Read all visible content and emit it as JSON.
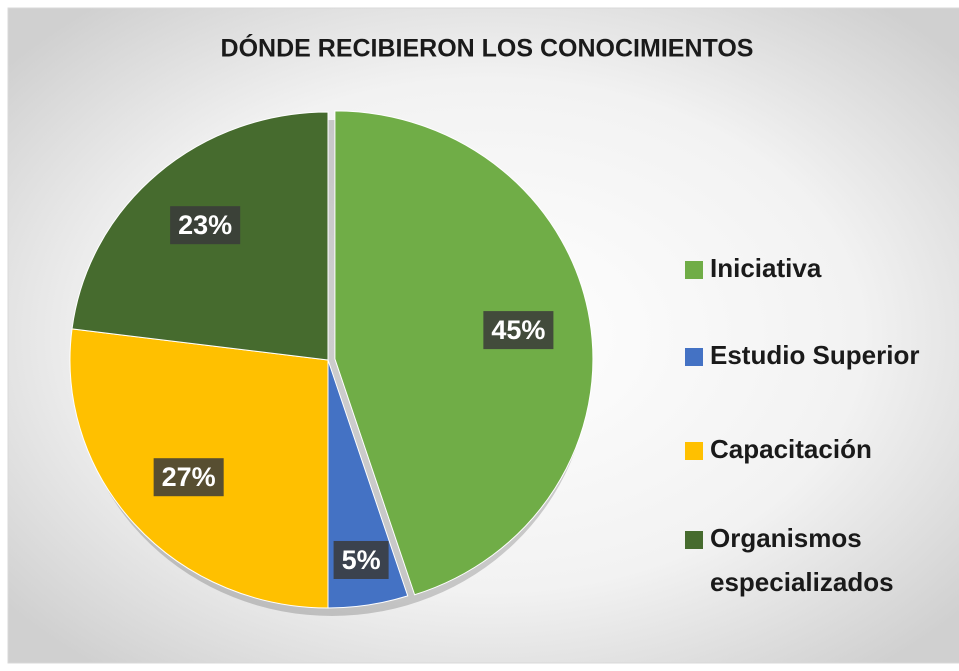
{
  "chart_data": {
    "type": "pie",
    "title": "DÓNDE RECIBIERON LOS CONOCIMIENTOS",
    "categories": [
      "Iniciativa",
      "Estudio Superior",
      "Capacitación",
      "Organismos especializados"
    ],
    "values": [
      45,
      5,
      27,
      23
    ],
    "value_labels": [
      "45%",
      "5%",
      "27%",
      "23%"
    ],
    "colors": [
      "#70ad47",
      "#4472c4",
      "#ffc000",
      "#466b2e"
    ],
    "legend": "right"
  }
}
